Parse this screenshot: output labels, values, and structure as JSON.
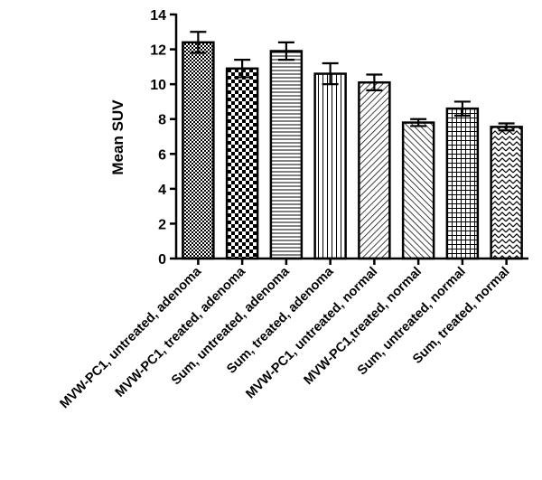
{
  "chart_data": {
    "type": "bar",
    "title": "",
    "xlabel": "",
    "ylabel": "Mean SUV",
    "ylim": [
      0,
      14
    ],
    "yticks": [
      0,
      2,
      4,
      6,
      8,
      10,
      12,
      14
    ],
    "grid": false,
    "legend": "none",
    "categories": [
      "MVW-PC1, untreated, adenoma",
      "MVW-PC1, treated, adenoma",
      "Sum, untreated, adenoma",
      "Sum, treated, adenoma",
      "MVW-PC1, untreated, normal",
      "MVW-PC1,treated, normal",
      "Sum, untreated, normal",
      "Sum, treated, normal"
    ],
    "values": [
      12.4,
      10.9,
      11.9,
      10.6,
      10.1,
      7.8,
      8.6,
      7.55
    ],
    "errors": [
      0.6,
      0.5,
      0.5,
      0.6,
      0.45,
      0.2,
      0.4,
      0.2
    ],
    "patterns": [
      "checker-fine",
      "checker-coarse",
      "hlines",
      "vlines",
      "diag-right",
      "diag-left",
      "grid",
      "zigzag"
    ],
    "colors": {
      "stroke": "#000000",
      "fill": "#ffffff"
    }
  }
}
